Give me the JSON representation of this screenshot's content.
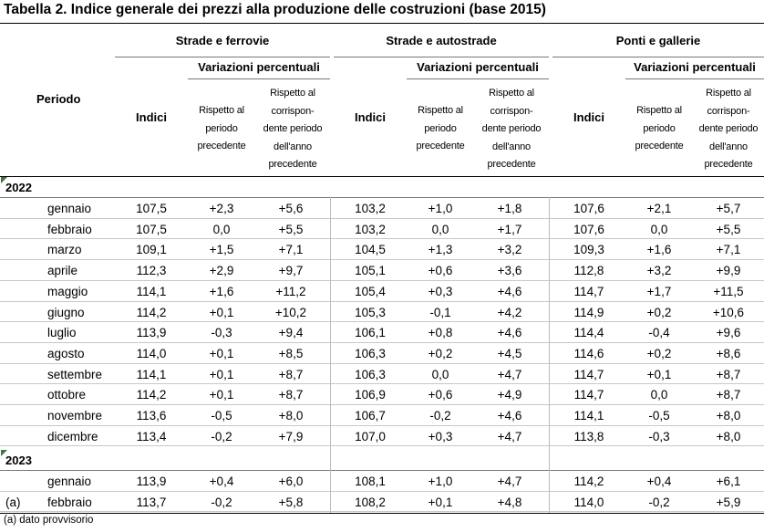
{
  "title": "Tabella 2. Indice generale dei prezzi alla produzione delle costruzioni (base 2015)",
  "header": {
    "periodo": "Periodo",
    "groups": [
      "Strade e ferrovie",
      "Strade e autostrade",
      "Ponti e gallerie"
    ],
    "variazioni": "Variazioni percentuali",
    "indici": "Indici",
    "rispetto_periodo": [
      "Rispetto al",
      "periodo",
      "precedente"
    ],
    "rispetto_anno": [
      "Rispetto al",
      "corrispon-",
      "dente periodo",
      "dell'anno",
      "precedente"
    ]
  },
  "years": [
    "2022",
    "2023"
  ],
  "rows_2022": [
    {
      "month": "gennaio",
      "v": [
        "107,5",
        "+2,3",
        "+5,6",
        "103,2",
        "+1,0",
        "+1,8",
        "107,6",
        "+2,1",
        "+5,7"
      ]
    },
    {
      "month": "febbraio",
      "v": [
        "107,5",
        "0,0",
        "+5,5",
        "103,2",
        "0,0",
        "+1,7",
        "107,6",
        "0,0",
        "+5,5"
      ]
    },
    {
      "month": "marzo",
      "v": [
        "109,1",
        "+1,5",
        "+7,1",
        "104,5",
        "+1,3",
        "+3,2",
        "109,3",
        "+1,6",
        "+7,1"
      ]
    },
    {
      "month": "aprile",
      "v": [
        "112,3",
        "+2,9",
        "+9,7",
        "105,1",
        "+0,6",
        "+3,6",
        "112,8",
        "+3,2",
        "+9,9"
      ]
    },
    {
      "month": "maggio",
      "v": [
        "114,1",
        "+1,6",
        "+11,2",
        "105,4",
        "+0,3",
        "+4,6",
        "114,7",
        "+1,7",
        "+11,5"
      ]
    },
    {
      "month": "giugno",
      "v": [
        "114,2",
        "+0,1",
        "+10,2",
        "105,3",
        "-0,1",
        "+4,2",
        "114,9",
        "+0,2",
        "+10,6"
      ]
    },
    {
      "month": "luglio",
      "v": [
        "113,9",
        "-0,3",
        "+9,4",
        "106,1",
        "+0,8",
        "+4,6",
        "114,4",
        "-0,4",
        "+9,6"
      ]
    },
    {
      "month": "agosto",
      "v": [
        "114,0",
        "+0,1",
        "+8,5",
        "106,3",
        "+0,2",
        "+4,5",
        "114,6",
        "+0,2",
        "+8,6"
      ]
    },
    {
      "month": "settembre",
      "v": [
        "114,1",
        "+0,1",
        "+8,7",
        "106,3",
        "0,0",
        "+4,7",
        "114,7",
        "+0,1",
        "+8,7"
      ]
    },
    {
      "month": "ottobre",
      "v": [
        "114,2",
        "+0,1",
        "+8,7",
        "106,9",
        "+0,6",
        "+4,9",
        "114,7",
        "0,0",
        "+8,7"
      ]
    },
    {
      "month": "novembre",
      "v": [
        "113,6",
        "-0,5",
        "+8,0",
        "106,7",
        "-0,2",
        "+4,6",
        "114,1",
        "-0,5",
        "+8,0"
      ]
    },
    {
      "month": "dicembre",
      "v": [
        "113,4",
        "-0,2",
        "+7,9",
        "107,0",
        "+0,3",
        "+4,7",
        "113,8",
        "-0,3",
        "+8,0"
      ]
    }
  ],
  "rows_2023": [
    {
      "month": "gennaio",
      "note": "",
      "v": [
        "113,9",
        "+0,4",
        "+6,0",
        "108,1",
        "+1,0",
        "+4,7",
        "114,2",
        "+0,4",
        "+6,1"
      ]
    },
    {
      "month": "febbraio",
      "note": "(a)",
      "v": [
        "113,7",
        "-0,2",
        "+5,8",
        "108,2",
        "+0,1",
        "+4,8",
        "114,0",
        "-0,2",
        "+5,9"
      ]
    }
  ],
  "footnote": "(a) dato provvisorio"
}
